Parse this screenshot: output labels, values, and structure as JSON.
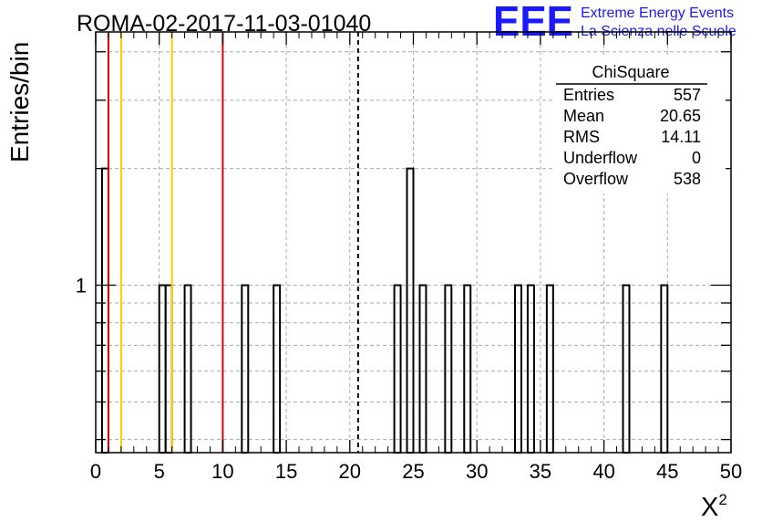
{
  "chart_data": {
    "type": "bar",
    "title": "ROMA-02-2017-11-03-01040",
    "xlabel": "X",
    "xlabel_superscript": "2",
    "ylabel": "Entries/bin",
    "xlim": [
      0,
      50
    ],
    "ylim_log": [
      0.37,
      4.5
    ],
    "y_scale": "log",
    "bin_width": 0.5,
    "x_tick_labels": [
      "0",
      "5",
      "10",
      "15",
      "20",
      "25",
      "30",
      "35",
      "40",
      "45",
      "50"
    ],
    "y_tick_labels": [
      {
        "value": 1,
        "label": "1"
      }
    ],
    "grid": true,
    "bins": [
      {
        "x": 0.5,
        "count": 2
      },
      {
        "x": 5.0,
        "count": 1
      },
      {
        "x": 5.5,
        "count": 1
      },
      {
        "x": 7.0,
        "count": 1
      },
      {
        "x": 11.5,
        "count": 1
      },
      {
        "x": 14.0,
        "count": 1
      },
      {
        "x": 23.5,
        "count": 1
      },
      {
        "x": 24.5,
        "count": 2
      },
      {
        "x": 25.5,
        "count": 1
      },
      {
        "x": 27.5,
        "count": 1
      },
      {
        "x": 29.0,
        "count": 1
      },
      {
        "x": 33.0,
        "count": 1
      },
      {
        "x": 34.0,
        "count": 1
      },
      {
        "x": 35.5,
        "count": 1
      },
      {
        "x": 41.5,
        "count": 1
      },
      {
        "x": 44.5,
        "count": 1
      }
    ],
    "vertical_lines": [
      {
        "x": 1.0,
        "color": "#dd0000",
        "style": "solid"
      },
      {
        "x": 2.0,
        "color": "#ffcc00",
        "style": "solid"
      },
      {
        "x": 6.0,
        "color": "#ffcc00",
        "style": "solid"
      },
      {
        "x": 10.0,
        "color": "#dd0000",
        "style": "solid"
      },
      {
        "x": 20.65,
        "color": "#000000",
        "style": "dashed"
      }
    ],
    "stats_box": {
      "title": "ChiSquare",
      "rows": [
        {
          "label": "Entries",
          "value": "557"
        },
        {
          "label": "Mean",
          "value": "20.65"
        },
        {
          "label": "RMS",
          "value": "14.11"
        },
        {
          "label": "Underflow",
          "value": "0"
        },
        {
          "label": "Overflow",
          "value": "538"
        }
      ]
    }
  },
  "logo": {
    "mark": "EEE",
    "line1": "Extreme Energy Events",
    "line2": "La Scienza nelle Scuole",
    "color": "#1a1aff"
  }
}
